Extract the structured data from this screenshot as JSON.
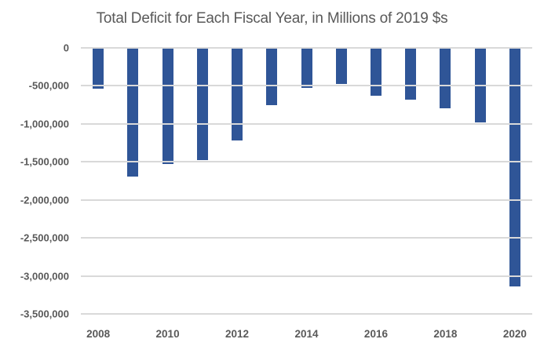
{
  "chart_data": {
    "type": "bar",
    "title": "Total Deficit for Each Fiscal Year, in Millions of 2019 $s",
    "categories": [
      "2008",
      "2009",
      "2010",
      "2011",
      "2012",
      "2013",
      "2014",
      "2015",
      "2016",
      "2017",
      "2018",
      "2019",
      "2020"
    ],
    "values": [
      -540000,
      -1690000,
      -1530000,
      -1480000,
      -1220000,
      -750000,
      -530000,
      -470000,
      -630000,
      -680000,
      -800000,
      -980000,
      -3140000
    ],
    "x_tick_labels": [
      "2008",
      "2010",
      "2012",
      "2014",
      "2016",
      "2018",
      "2020"
    ],
    "y_ticks": [
      0,
      -500000,
      -1000000,
      -1500000,
      -2000000,
      -2500000,
      -3000000,
      -3500000
    ],
    "y_tick_labels": [
      "0",
      "-500,000",
      "-1,000,000",
      "-1,500,000",
      "-2,000,000",
      "-2,500,000",
      "-3,000,000",
      "-3,500,000"
    ],
    "ylim": [
      -3500000,
      0
    ],
    "xlabel": "",
    "ylabel": "",
    "grid": "on",
    "legend": "none",
    "colors": {
      "bar": "#2F5597",
      "gridline": "#D9D9D9",
      "text": "#595959",
      "background": "#FFFFFF"
    }
  }
}
